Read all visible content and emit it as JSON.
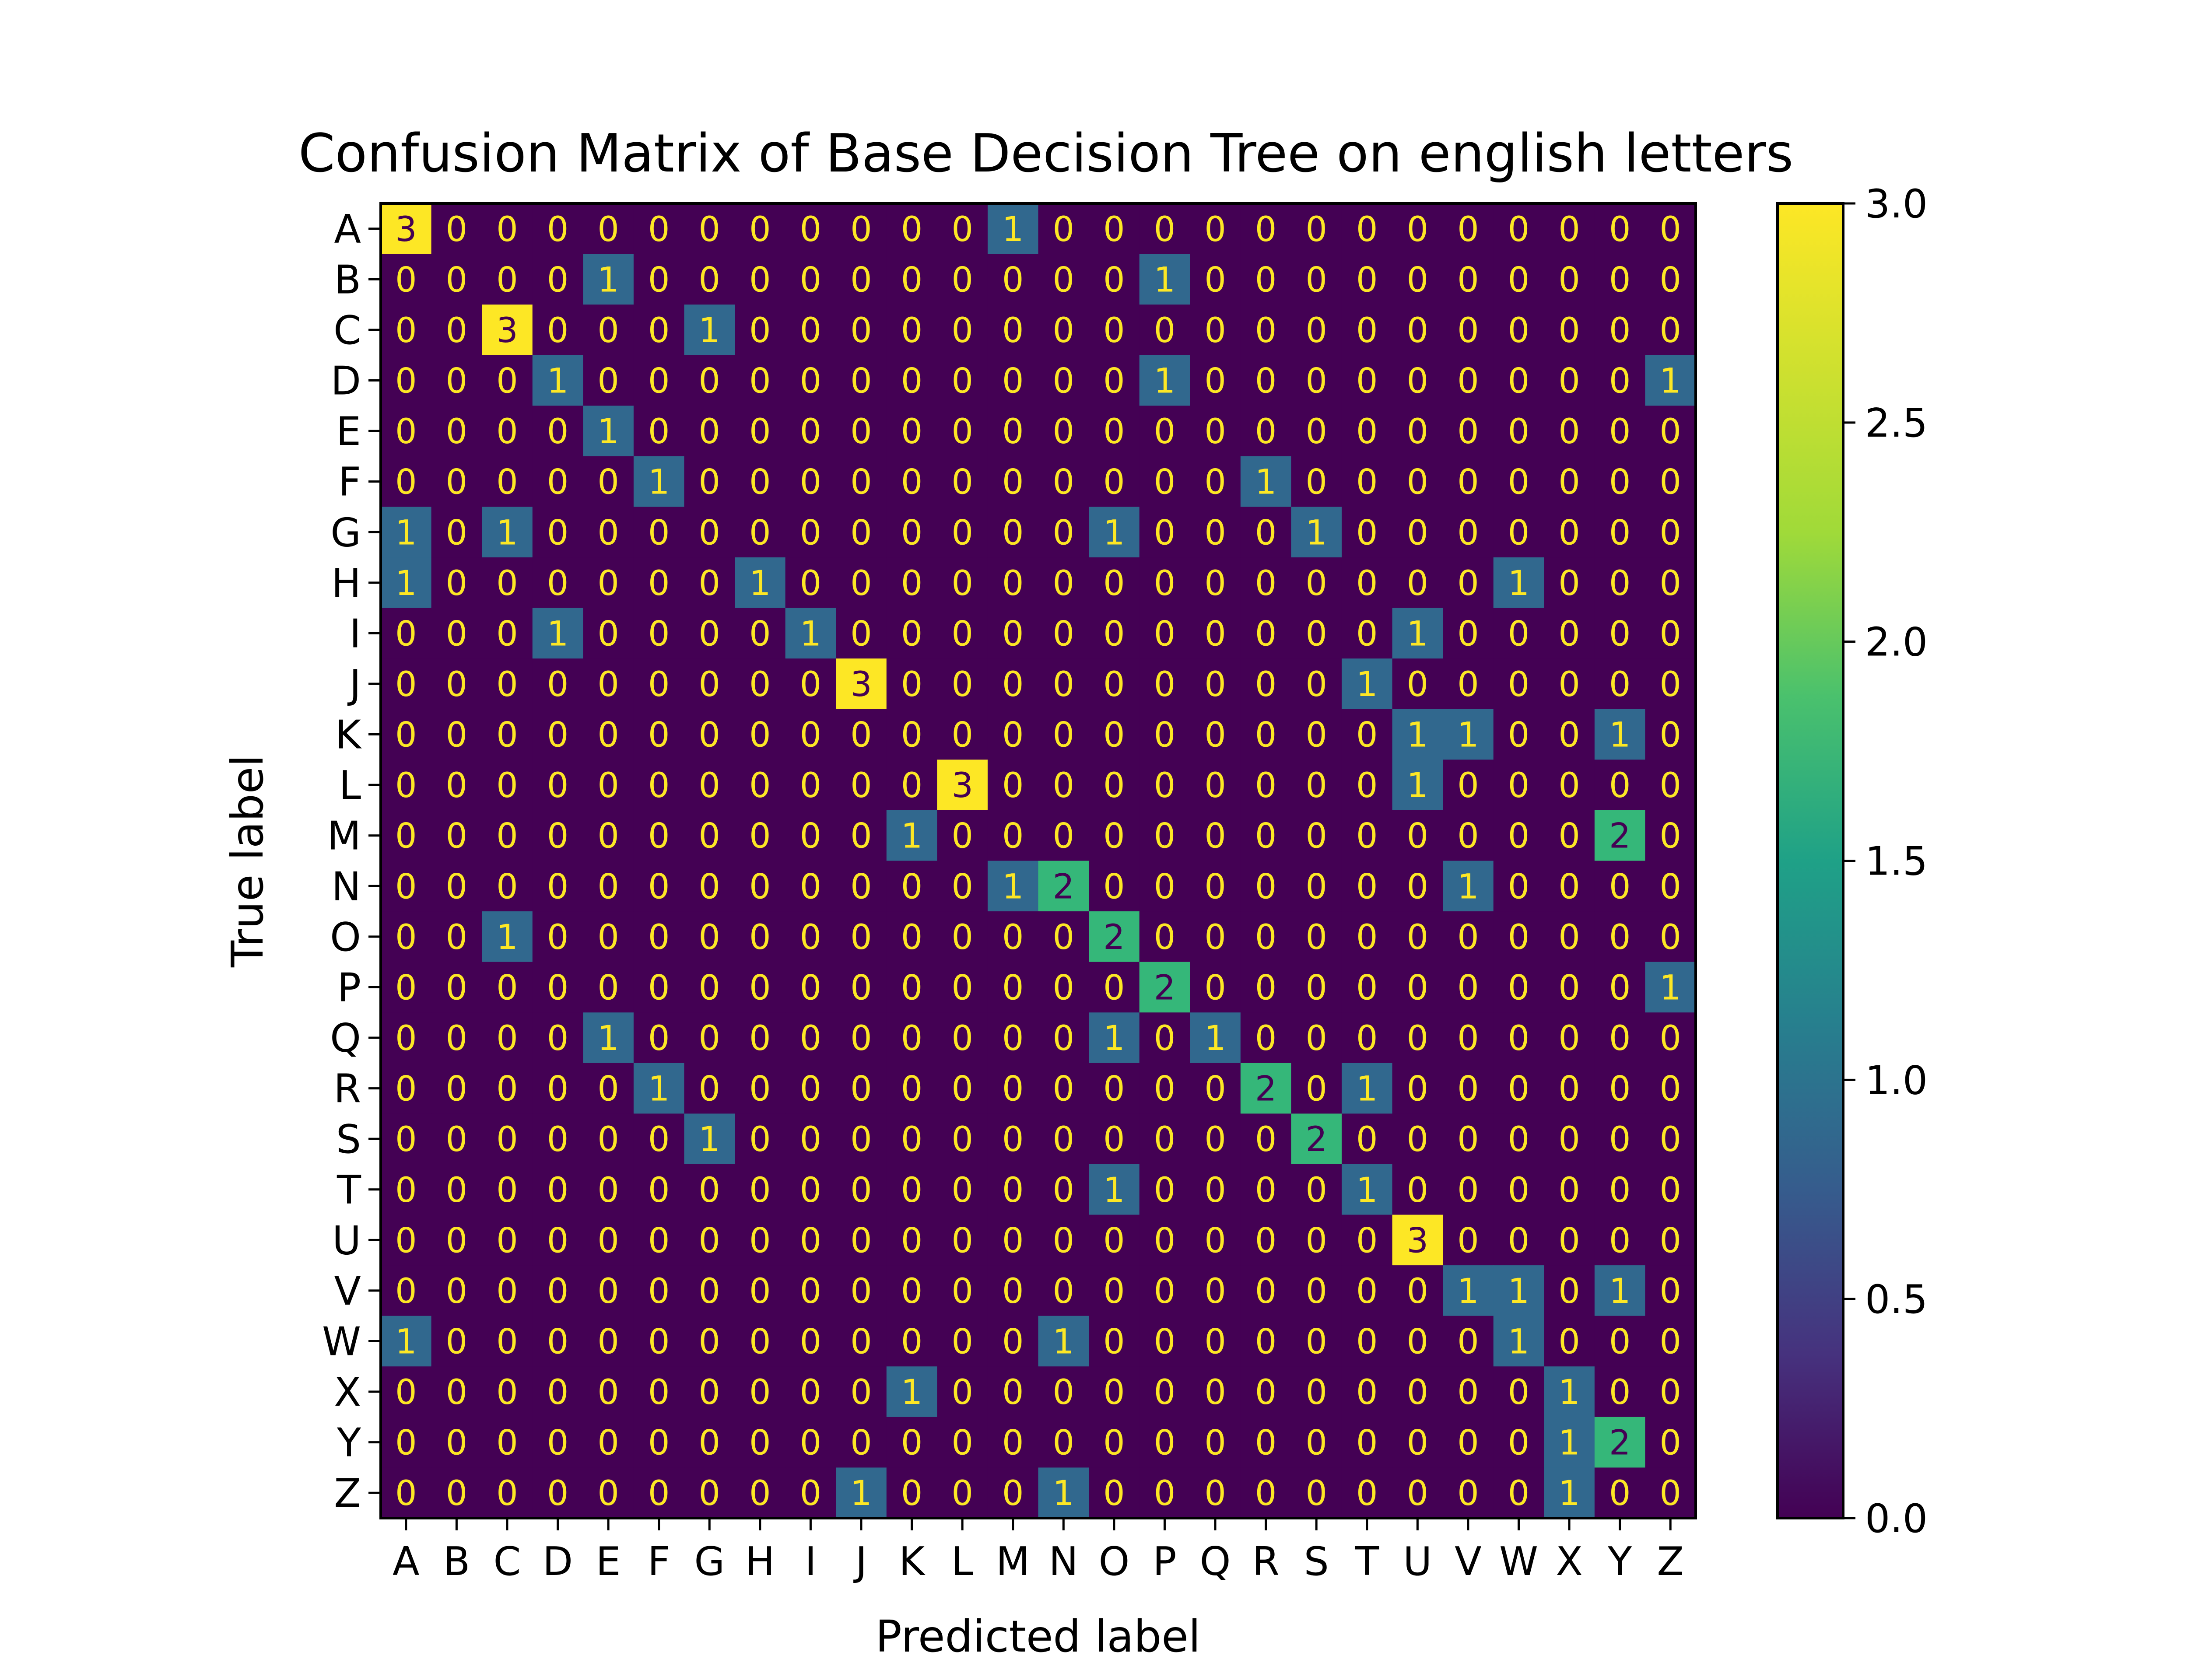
{
  "chart_data": {
    "type": "heatmap",
    "title": "Confusion Matrix of Base Decision Tree on english letters",
    "xlabel": "Predicted label",
    "ylabel": "True label",
    "x_labels": [
      "A",
      "B",
      "C",
      "D",
      "E",
      "F",
      "G",
      "H",
      "I",
      "J",
      "K",
      "L",
      "M",
      "N",
      "O",
      "P",
      "Q",
      "R",
      "S",
      "T",
      "U",
      "V",
      "W",
      "X",
      "Y",
      "Z"
    ],
    "y_labels": [
      "A",
      "B",
      "C",
      "D",
      "E",
      "F",
      "G",
      "H",
      "I",
      "J",
      "K",
      "L",
      "M",
      "N",
      "O",
      "P",
      "Q",
      "R",
      "S",
      "T",
      "U",
      "V",
      "W",
      "X",
      "Y",
      "Z"
    ],
    "matrix": [
      [
        3,
        0,
        0,
        0,
        0,
        0,
        0,
        0,
        0,
        0,
        0,
        0,
        1,
        0,
        0,
        0,
        0,
        0,
        0,
        0,
        0,
        0,
        0,
        0,
        0,
        0
      ],
      [
        0,
        0,
        0,
        0,
        1,
        0,
        0,
        0,
        0,
        0,
        0,
        0,
        0,
        0,
        0,
        1,
        0,
        0,
        0,
        0,
        0,
        0,
        0,
        0,
        0,
        0
      ],
      [
        0,
        0,
        3,
        0,
        0,
        0,
        1,
        0,
        0,
        0,
        0,
        0,
        0,
        0,
        0,
        0,
        0,
        0,
        0,
        0,
        0,
        0,
        0,
        0,
        0,
        0
      ],
      [
        0,
        0,
        0,
        1,
        0,
        0,
        0,
        0,
        0,
        0,
        0,
        0,
        0,
        0,
        0,
        1,
        0,
        0,
        0,
        0,
        0,
        0,
        0,
        0,
        0,
        1
      ],
      [
        0,
        0,
        0,
        0,
        1,
        0,
        0,
        0,
        0,
        0,
        0,
        0,
        0,
        0,
        0,
        0,
        0,
        0,
        0,
        0,
        0,
        0,
        0,
        0,
        0,
        0
      ],
      [
        0,
        0,
        0,
        0,
        0,
        1,
        0,
        0,
        0,
        0,
        0,
        0,
        0,
        0,
        0,
        0,
        0,
        1,
        0,
        0,
        0,
        0,
        0,
        0,
        0,
        0
      ],
      [
        1,
        0,
        1,
        0,
        0,
        0,
        0,
        0,
        0,
        0,
        0,
        0,
        0,
        0,
        1,
        0,
        0,
        0,
        1,
        0,
        0,
        0,
        0,
        0,
        0,
        0
      ],
      [
        1,
        0,
        0,
        0,
        0,
        0,
        0,
        1,
        0,
        0,
        0,
        0,
        0,
        0,
        0,
        0,
        0,
        0,
        0,
        0,
        0,
        0,
        1,
        0,
        0,
        0
      ],
      [
        0,
        0,
        0,
        1,
        0,
        0,
        0,
        0,
        1,
        0,
        0,
        0,
        0,
        0,
        0,
        0,
        0,
        0,
        0,
        0,
        1,
        0,
        0,
        0,
        0,
        0
      ],
      [
        0,
        0,
        0,
        0,
        0,
        0,
        0,
        0,
        0,
        3,
        0,
        0,
        0,
        0,
        0,
        0,
        0,
        0,
        0,
        1,
        0,
        0,
        0,
        0,
        0,
        0
      ],
      [
        0,
        0,
        0,
        0,
        0,
        0,
        0,
        0,
        0,
        0,
        0,
        0,
        0,
        0,
        0,
        0,
        0,
        0,
        0,
        0,
        1,
        1,
        0,
        0,
        1,
        0
      ],
      [
        0,
        0,
        0,
        0,
        0,
        0,
        0,
        0,
        0,
        0,
        0,
        3,
        0,
        0,
        0,
        0,
        0,
        0,
        0,
        0,
        1,
        0,
        0,
        0,
        0,
        0
      ],
      [
        0,
        0,
        0,
        0,
        0,
        0,
        0,
        0,
        0,
        0,
        1,
        0,
        0,
        0,
        0,
        0,
        0,
        0,
        0,
        0,
        0,
        0,
        0,
        0,
        2,
        0
      ],
      [
        0,
        0,
        0,
        0,
        0,
        0,
        0,
        0,
        0,
        0,
        0,
        0,
        1,
        2,
        0,
        0,
        0,
        0,
        0,
        0,
        0,
        1,
        0,
        0,
        0,
        0
      ],
      [
        0,
        0,
        1,
        0,
        0,
        0,
        0,
        0,
        0,
        0,
        0,
        0,
        0,
        0,
        2,
        0,
        0,
        0,
        0,
        0,
        0,
        0,
        0,
        0,
        0,
        0
      ],
      [
        0,
        0,
        0,
        0,
        0,
        0,
        0,
        0,
        0,
        0,
        0,
        0,
        0,
        0,
        0,
        2,
        0,
        0,
        0,
        0,
        0,
        0,
        0,
        0,
        0,
        1
      ],
      [
        0,
        0,
        0,
        0,
        1,
        0,
        0,
        0,
        0,
        0,
        0,
        0,
        0,
        0,
        1,
        0,
        1,
        0,
        0,
        0,
        0,
        0,
        0,
        0,
        0,
        0
      ],
      [
        0,
        0,
        0,
        0,
        0,
        1,
        0,
        0,
        0,
        0,
        0,
        0,
        0,
        0,
        0,
        0,
        0,
        2,
        0,
        1,
        0,
        0,
        0,
        0,
        0,
        0
      ],
      [
        0,
        0,
        0,
        0,
        0,
        0,
        1,
        0,
        0,
        0,
        0,
        0,
        0,
        0,
        0,
        0,
        0,
        0,
        2,
        0,
        0,
        0,
        0,
        0,
        0,
        0
      ],
      [
        0,
        0,
        0,
        0,
        0,
        0,
        0,
        0,
        0,
        0,
        0,
        0,
        0,
        0,
        1,
        0,
        0,
        0,
        0,
        1,
        0,
        0,
        0,
        0,
        0,
        0
      ],
      [
        0,
        0,
        0,
        0,
        0,
        0,
        0,
        0,
        0,
        0,
        0,
        0,
        0,
        0,
        0,
        0,
        0,
        0,
        0,
        0,
        3,
        0,
        0,
        0,
        0,
        0
      ],
      [
        0,
        0,
        0,
        0,
        0,
        0,
        0,
        0,
        0,
        0,
        0,
        0,
        0,
        0,
        0,
        0,
        0,
        0,
        0,
        0,
        0,
        1,
        1,
        0,
        1,
        0
      ],
      [
        1,
        0,
        0,
        0,
        0,
        0,
        0,
        0,
        0,
        0,
        0,
        0,
        0,
        1,
        0,
        0,
        0,
        0,
        0,
        0,
        0,
        0,
        1,
        0,
        0,
        0
      ],
      [
        0,
        0,
        0,
        0,
        0,
        0,
        0,
        0,
        0,
        0,
        1,
        0,
        0,
        0,
        0,
        0,
        0,
        0,
        0,
        0,
        0,
        0,
        0,
        1,
        0,
        0
      ],
      [
        0,
        0,
        0,
        0,
        0,
        0,
        0,
        0,
        0,
        0,
        0,
        0,
        0,
        0,
        0,
        0,
        0,
        0,
        0,
        0,
        0,
        0,
        0,
        1,
        2,
        0
      ],
      [
        0,
        0,
        0,
        0,
        0,
        0,
        0,
        0,
        0,
        1,
        0,
        0,
        0,
        1,
        0,
        0,
        0,
        0,
        0,
        0,
        0,
        0,
        0,
        1,
        0,
        0
      ]
    ],
    "colormap": "viridis",
    "colorbar": {
      "range": [
        0.0,
        3.0
      ],
      "ticks": [
        "0.0",
        "0.5",
        "1.0",
        "1.5",
        "2.0",
        "2.5",
        "3.0"
      ]
    },
    "colors": {
      "low": "#440154",
      "one": "#31688e",
      "two": "#35b779",
      "high": "#fde725"
    },
    "grid": false,
    "legend": "colorbar-right"
  }
}
